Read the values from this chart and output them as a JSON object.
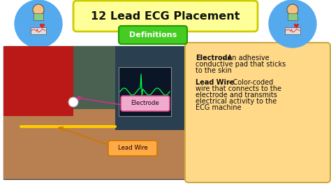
{
  "bg_color": "#ffffff",
  "title": "12 Lead ECG Placement",
  "title_box_face": "#ffff99",
  "title_box_edge": "#cccc00",
  "subtitle": "Definitions",
  "subtitle_face": "#44cc22",
  "subtitle_edge": "#229900",
  "icon_color": "#55aaee",
  "electrode_label": "Electrode",
  "electrode_face": "#f0aacc",
  "electrode_edge": "#cc4488",
  "electrode_arrow": "#cc3388",
  "leadwire_label": "Lead Wire",
  "leadwire_face": "#ffaa44",
  "leadwire_edge": "#cc7700",
  "leadwire_arrow": "#cc7700",
  "def_box_face": "#ffd888",
  "def_box_edge": "#ccaa44",
  "photo_bg": "#5a7060",
  "photo_red": "#bb2020",
  "photo_skin": "#c89060",
  "photo_equip": "#2a4a5a",
  "monitor_face": "#112233",
  "ecg_color": "#00ff44",
  "text_dark": "#111111",
  "electrode_bold": "Electrode",
  "electrode_rest": " - An adhesive\nconductive pad that sticks\nto the skin",
  "leadwire_bold": "Lead Wire",
  "leadwire_rest": " - Color-coded\nwire that connects to the\nelectrode and transmits\nelectrical activity to the\nECG machine"
}
